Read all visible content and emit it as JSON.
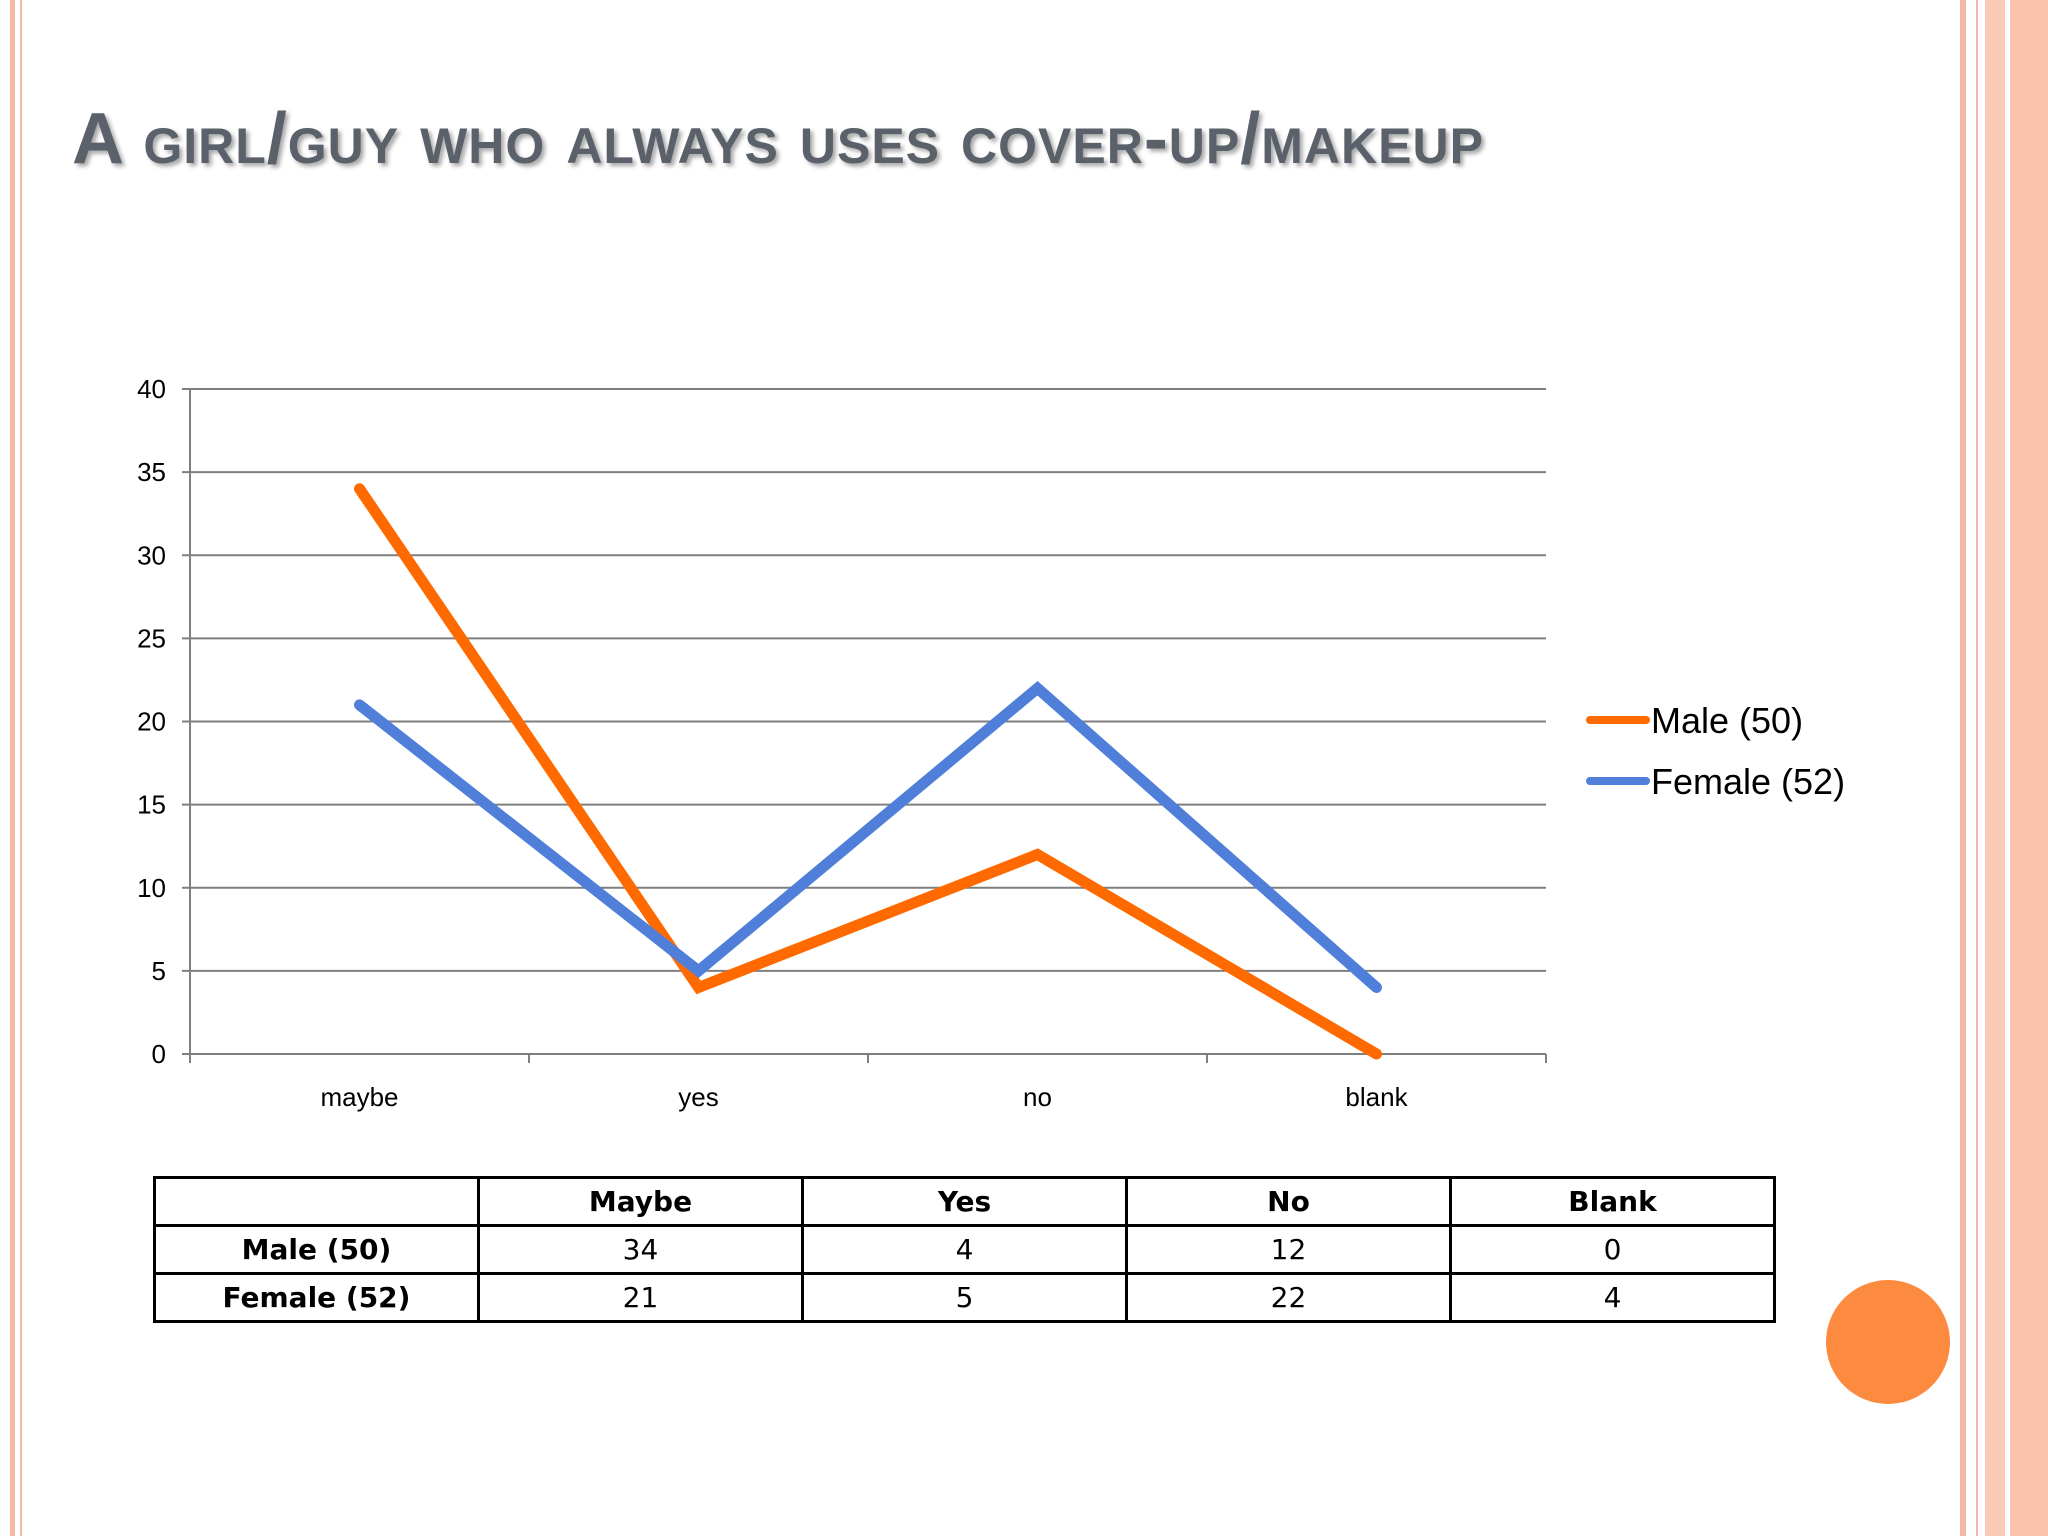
{
  "slide": {
    "title": "A girl/guy who always uses cover-up/makeup"
  },
  "colors": {
    "male": "#ff6a00",
    "female": "#4f7fd9",
    "title": "#5b616a",
    "accent_dot": "#fc8a3f",
    "border_stripes": "#f4b9a2"
  },
  "chart_data": {
    "type": "line",
    "title": "",
    "xlabel": "",
    "ylabel": "",
    "categories": [
      "maybe",
      "yes",
      "no",
      "blank"
    ],
    "y_ticks": [
      "0",
      "5",
      "10",
      "15",
      "20",
      "25",
      "30",
      "35",
      "40"
    ],
    "ylim": [
      0,
      40
    ],
    "grid": true,
    "legend_position": "right",
    "series": [
      {
        "name": "Male (50)",
        "values": [
          34,
          4,
          12,
          0
        ],
        "color": "#ff6a00"
      },
      {
        "name": "Female (52)",
        "values": [
          21,
          5,
          22,
          4
        ],
        "color": "#4f7fd9"
      }
    ]
  },
  "table": {
    "headers": [
      "",
      "Maybe",
      "Yes",
      "No",
      "Blank"
    ],
    "rows": [
      {
        "label": "Male (50)",
        "values": [
          "34",
          "4",
          "12",
          "0"
        ]
      },
      {
        "label": "Female (52)",
        "values": [
          "21",
          "5",
          "22",
          "4"
        ]
      }
    ]
  }
}
